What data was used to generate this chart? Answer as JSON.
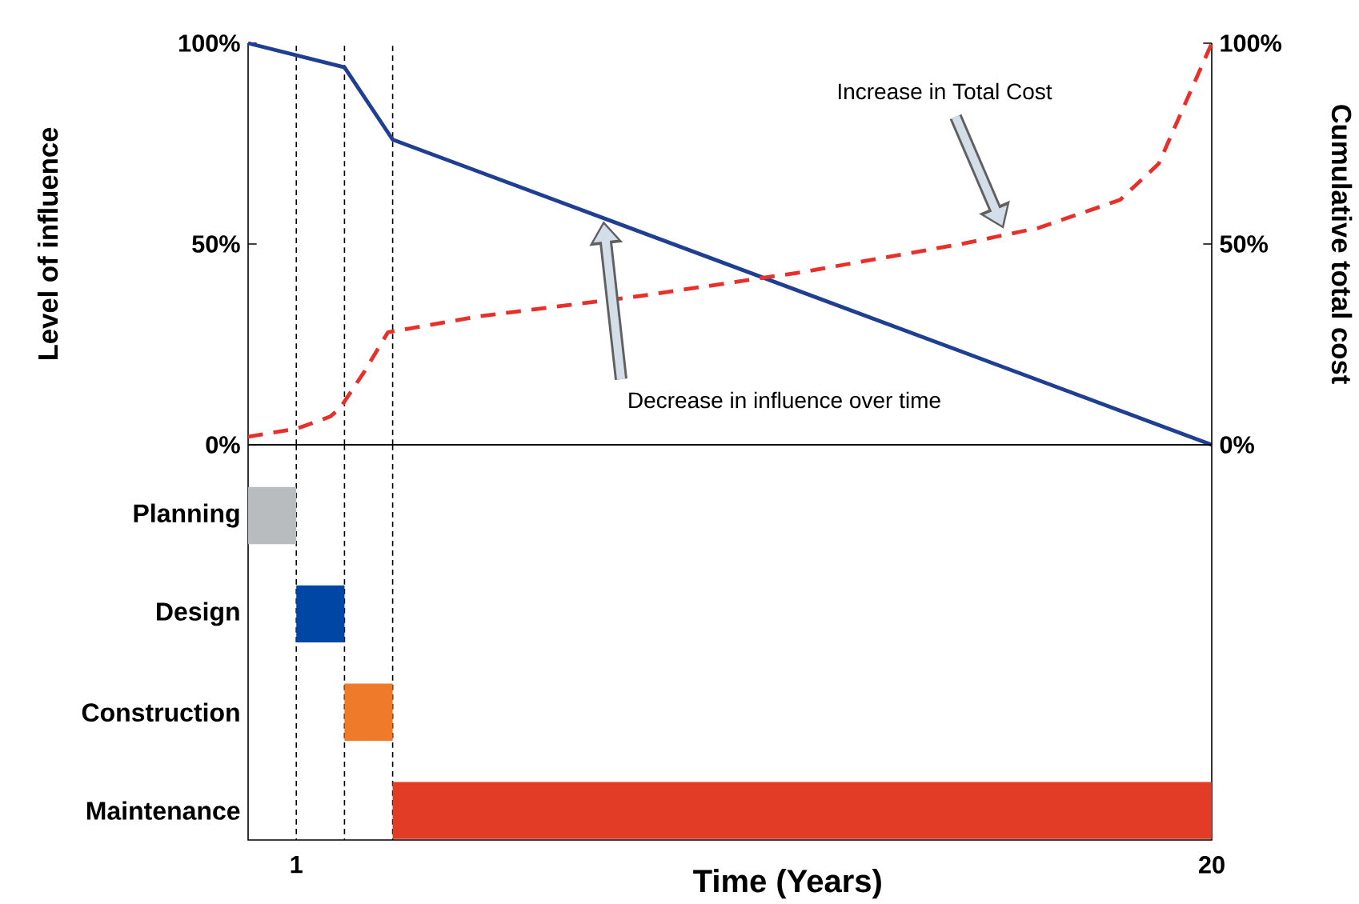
{
  "chart_data": [
    {
      "type": "line",
      "ylabel": "Level of influence",
      "y2label": "Cumulative total cost",
      "xlim": [
        0,
        20
      ],
      "ylim": [
        0,
        100
      ],
      "yticks": [
        {
          "value": 0,
          "label": "0%"
        },
        {
          "value": 50,
          "label": "50%"
        },
        {
          "value": 100,
          "label": "100%"
        }
      ],
      "y2lim": [
        0,
        100
      ],
      "y2ticks": [
        {
          "value": 0,
          "label": "0%"
        },
        {
          "value": 50,
          "label": "50%"
        },
        {
          "value": 100,
          "label": "100%"
        }
      ],
      "tick_labels": "y",
      "series": [
        {
          "color": "#1f3f93",
          "line_style": "solid",
          "axis": "y",
          "x": [
            0,
            2,
            3,
            20
          ],
          "values": [
            100,
            94,
            76,
            0
          ]
        },
        {
          "color": "#e8302a",
          "line_style": "dashed",
          "axis": "y2",
          "x": [
            0,
            1,
            1.7,
            1.9,
            2.4,
            2.9,
            4.8,
            8.1,
            11.5,
            14.8,
            16.4,
            18.1,
            18.9,
            20
          ],
          "values": [
            2,
            4,
            7,
            9,
            18,
            28,
            32,
            37,
            43,
            50,
            54,
            61,
            70,
            100
          ]
        }
      ],
      "annotations": [
        "Decrease in influence over time",
        "Increase in Total Cost"
      ],
      "ref_lines": [
        {
          "axis": "x",
          "value": 1,
          "color": "#000000",
          "line_style": "dashed"
        },
        {
          "axis": "x",
          "value": 2,
          "color": "#000000",
          "line_style": "dashed"
        },
        {
          "axis": "x",
          "value": 3,
          "color": "#000000",
          "line_style": "dashed"
        }
      ]
    },
    {
      "type": "bar",
      "orientation": "horizontal",
      "categories": [
        "Planning",
        "Design",
        "Construction",
        "Maintenance"
      ],
      "values": [
        1,
        1,
        1,
        17
      ],
      "base": [
        0,
        1,
        2,
        3
      ],
      "colors": [
        "#b9bcbe",
        "#0047a5",
        "#ef7b2a",
        "#e23c26"
      ],
      "xlabel": "Time (Years)",
      "xlim": [
        0,
        20
      ],
      "xticks": [
        1,
        20
      ],
      "ref_lines": [
        {
          "axis": "x",
          "value": 1,
          "color": "#000000",
          "line_style": "dashed"
        },
        {
          "axis": "x",
          "value": 2,
          "color": "#000000",
          "line_style": "dashed"
        },
        {
          "axis": "x",
          "value": 3,
          "color": "#000000",
          "line_style": "dashed"
        }
      ]
    }
  ]
}
